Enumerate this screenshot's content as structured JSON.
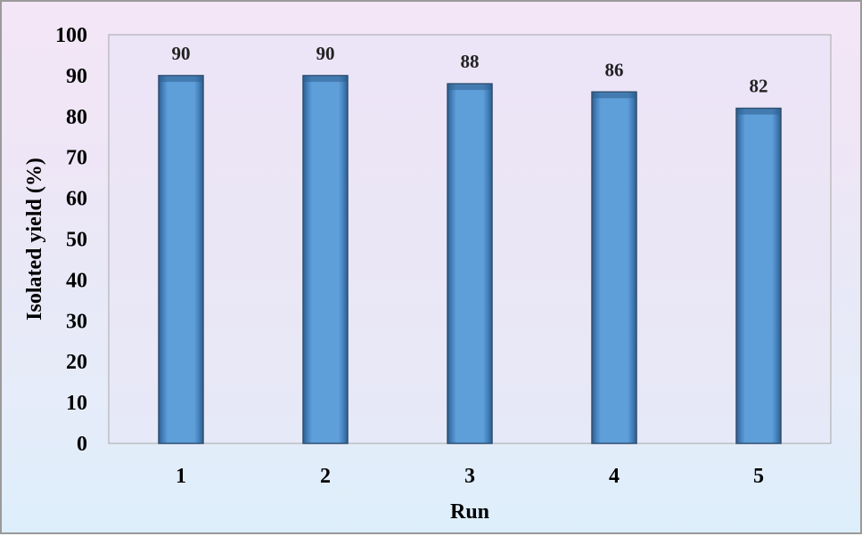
{
  "chart_data": {
    "type": "bar",
    "categories": [
      "1",
      "2",
      "3",
      "4",
      "5"
    ],
    "values": [
      90,
      90,
      88,
      86,
      82
    ],
    "xlabel": "Run",
    "ylabel": "Isolated yield (%)",
    "ylim": [
      0,
      100
    ],
    "yticks": [
      "0",
      "10",
      "20",
      "30",
      "40",
      "50",
      "60",
      "70",
      "80",
      "90",
      "100"
    ],
    "data_labels": [
      "90",
      "90",
      "88",
      "86",
      "82"
    ],
    "grid": false,
    "legend": "none",
    "colors": {
      "bar_fill": "#5b9bd5",
      "bar_edge": "#2f4f70",
      "plot_area": "#ebe6f6"
    }
  }
}
